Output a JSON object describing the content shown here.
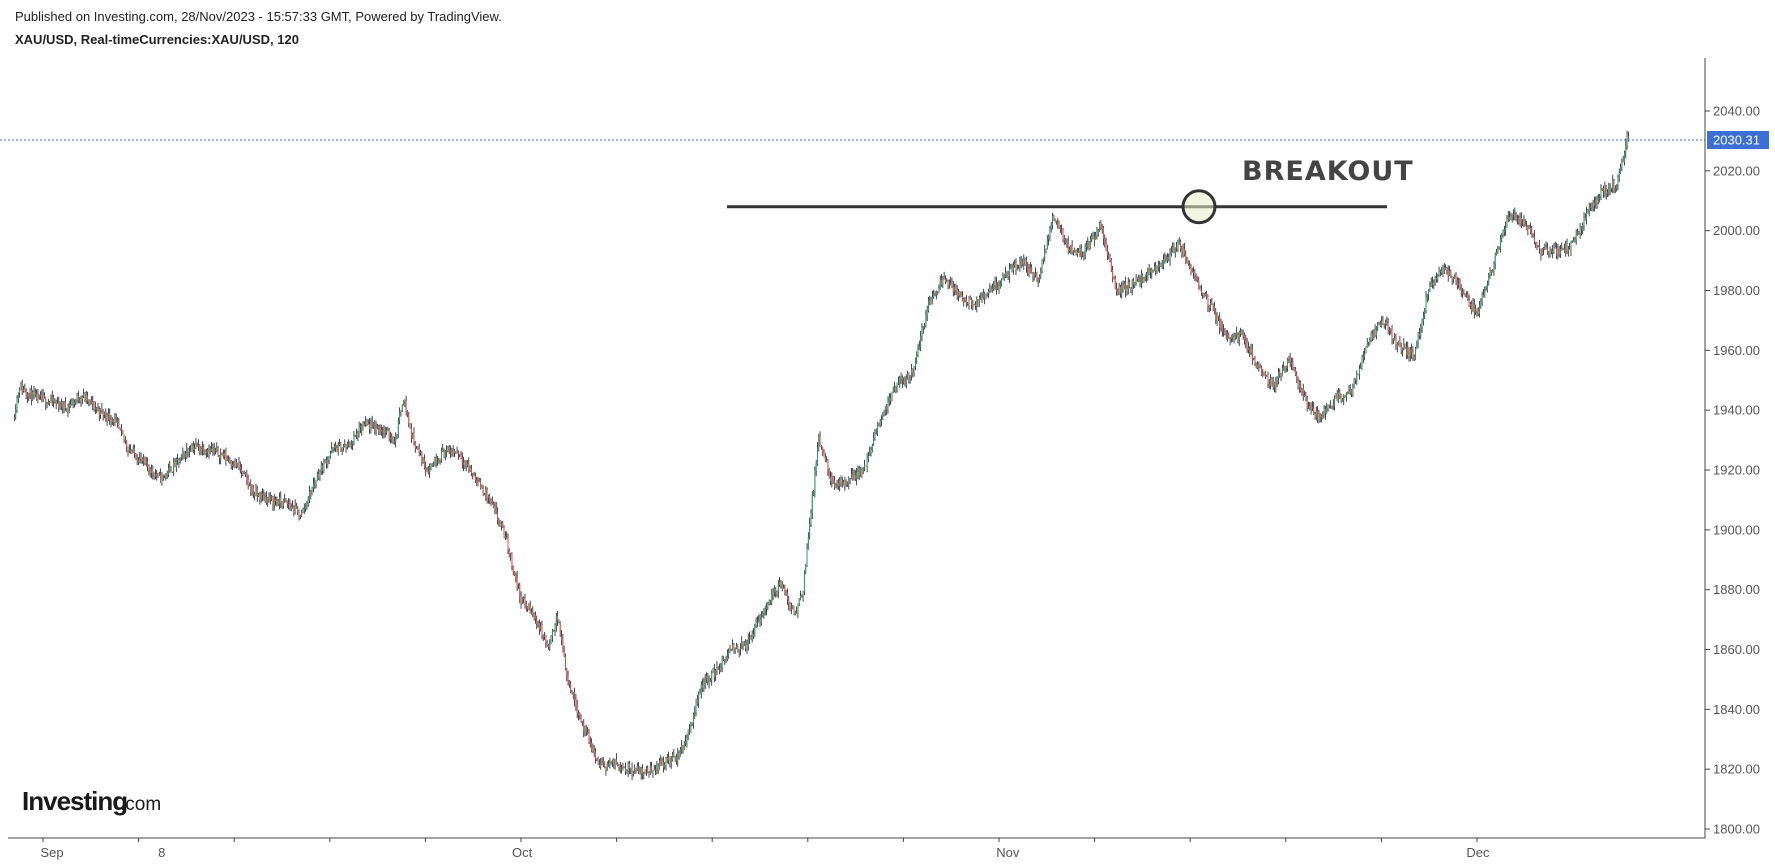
{
  "header": {
    "published": "Published on Investing.com, 28/Nov/2023 - 15:57:33 GMT, Powered by TradingView.",
    "symbol": "XAU/USD, Real-timeCurrencies:XAU/USD, 120"
  },
  "logo": {
    "main": "Investing",
    "domain": ".com"
  },
  "colors": {
    "up": "#2e9d6a",
    "down": "#e0524f",
    "wick": "#1a1a1a",
    "price_line": "#3b6fd6",
    "price_label_bg": "#3b6fd6",
    "axis": "#444444",
    "annotation": "#333333",
    "circle_fill": "#e8ecc6"
  },
  "chart_data": {
    "type": "candlestick",
    "title": "XAU/USD, Real-timeCurrencies:XAU/USD, 120",
    "ylim": [
      1800,
      2050
    ],
    "y_ticks": [
      "1800.00",
      "1820.00",
      "1840.00",
      "1860.00",
      "1880.00",
      "1900.00",
      "1920.00",
      "1940.00",
      "1960.00",
      "1980.00",
      "2000.00",
      "2020.00",
      "2040.00"
    ],
    "x_tick_labels": [
      {
        "label": "Sep",
        "day": 0
      },
      {
        "label": "8",
        "day": 7
      },
      {
        "label": "Oct",
        "day": 30
      },
      {
        "label": "Nov",
        "day": 61
      },
      {
        "label": "Dec",
        "day": 91
      }
    ],
    "x_range_days": [
      -2.5,
      105.5
    ],
    "last_price": 2030.31,
    "last_price_label": "2030.31",
    "resistance_level": 2008,
    "annotation": "BREAKOUT",
    "price_path": [
      [
        -2.4,
        1937
      ],
      [
        -2.0,
        1948
      ],
      [
        -1.0,
        1944
      ],
      [
        0.0,
        1943
      ],
      [
        1.0,
        1941
      ],
      [
        2.0,
        1945
      ],
      [
        3.0,
        1940
      ],
      [
        4.0,
        1937
      ],
      [
        5.0,
        1927
      ],
      [
        6.0,
        1922
      ],
      [
        7.0,
        1917
      ],
      [
        8.0,
        1922
      ],
      [
        9.0,
        1928
      ],
      [
        10.0,
        1927
      ],
      [
        11.0,
        1925
      ],
      [
        12.0,
        1921
      ],
      [
        13.0,
        1912
      ],
      [
        14.0,
        1910
      ],
      [
        15.0,
        1909
      ],
      [
        16.0,
        1905
      ],
      [
        17.0,
        1918
      ],
      [
        18.0,
        1927
      ],
      [
        19.0,
        1928
      ],
      [
        20.0,
        1935
      ],
      [
        21.0,
        1934
      ],
      [
        22.0,
        1930
      ],
      [
        22.5,
        1945
      ],
      [
        23.0,
        1932
      ],
      [
        24.0,
        1920
      ],
      [
        25.0,
        1926
      ],
      [
        26.0,
        1926
      ],
      [
        27.0,
        1918
      ],
      [
        28.0,
        1910
      ],
      [
        29.0,
        1898
      ],
      [
        30.0,
        1877
      ],
      [
        31.0,
        1870
      ],
      [
        31.8,
        1860
      ],
      [
        32.3,
        1872
      ],
      [
        33.0,
        1850
      ],
      [
        34.0,
        1834
      ],
      [
        35.0,
        1821
      ],
      [
        36.0,
        1822
      ],
      [
        37.0,
        1820
      ],
      [
        38.0,
        1819
      ],
      [
        39.0,
        1822
      ],
      [
        40.0,
        1824
      ],
      [
        40.7,
        1832
      ],
      [
        41.5,
        1848
      ],
      [
        42.5,
        1853
      ],
      [
        43.5,
        1860
      ],
      [
        44.5,
        1862
      ],
      [
        45.5,
        1873
      ],
      [
        46.5,
        1882
      ],
      [
        47.5,
        1872
      ],
      [
        48.0,
        1880
      ],
      [
        49.0,
        1930
      ],
      [
        50.0,
        1914
      ],
      [
        51.0,
        1917
      ],
      [
        52.0,
        1921
      ],
      [
        53.0,
        1938
      ],
      [
        54.0,
        1948
      ],
      [
        55.0,
        1953
      ],
      [
        56.0,
        1975
      ],
      [
        57.0,
        1985
      ],
      [
        58.0,
        1978
      ],
      [
        59.0,
        1975
      ],
      [
        60.0,
        1980
      ],
      [
        61.0,
        1985
      ],
      [
        62.0,
        1990
      ],
      [
        63.0,
        1983
      ],
      [
        64.0,
        2005
      ],
      [
        65.0,
        1994
      ],
      [
        66.0,
        1993
      ],
      [
        67.0,
        2002
      ],
      [
        68.0,
        1980
      ],
      [
        69.0,
        1982
      ],
      [
        70.0,
        1985
      ],
      [
        71.0,
        1990
      ],
      [
        72.0,
        1995
      ],
      [
        73.0,
        1985
      ],
      [
        74.0,
        1975
      ],
      [
        75.0,
        1965
      ],
      [
        76.0,
        1965
      ],
      [
        77.0,
        1955
      ],
      [
        78.0,
        1948
      ],
      [
        79.0,
        1957
      ],
      [
        80.0,
        1944
      ],
      [
        81.0,
        1937
      ],
      [
        82.0,
        1944
      ],
      [
        83.0,
        1946
      ],
      [
        84.0,
        1962
      ],
      [
        85.0,
        1970
      ],
      [
        86.0,
        1962
      ],
      [
        87.0,
        1958
      ],
      [
        88.0,
        1982
      ],
      [
        89.0,
        1988
      ],
      [
        90.0,
        1980
      ],
      [
        91.0,
        1972
      ],
      [
        92.0,
        1988
      ],
      [
        93.0,
        2005
      ],
      [
        94.0,
        2003
      ],
      [
        95.0,
        1993
      ],
      [
        96.0,
        1993
      ],
      [
        97.0,
        1995
      ],
      [
        98.0,
        2005
      ],
      [
        99.0,
        2013
      ],
      [
        100.0,
        2016
      ],
      [
        100.6,
        2030
      ]
    ]
  }
}
